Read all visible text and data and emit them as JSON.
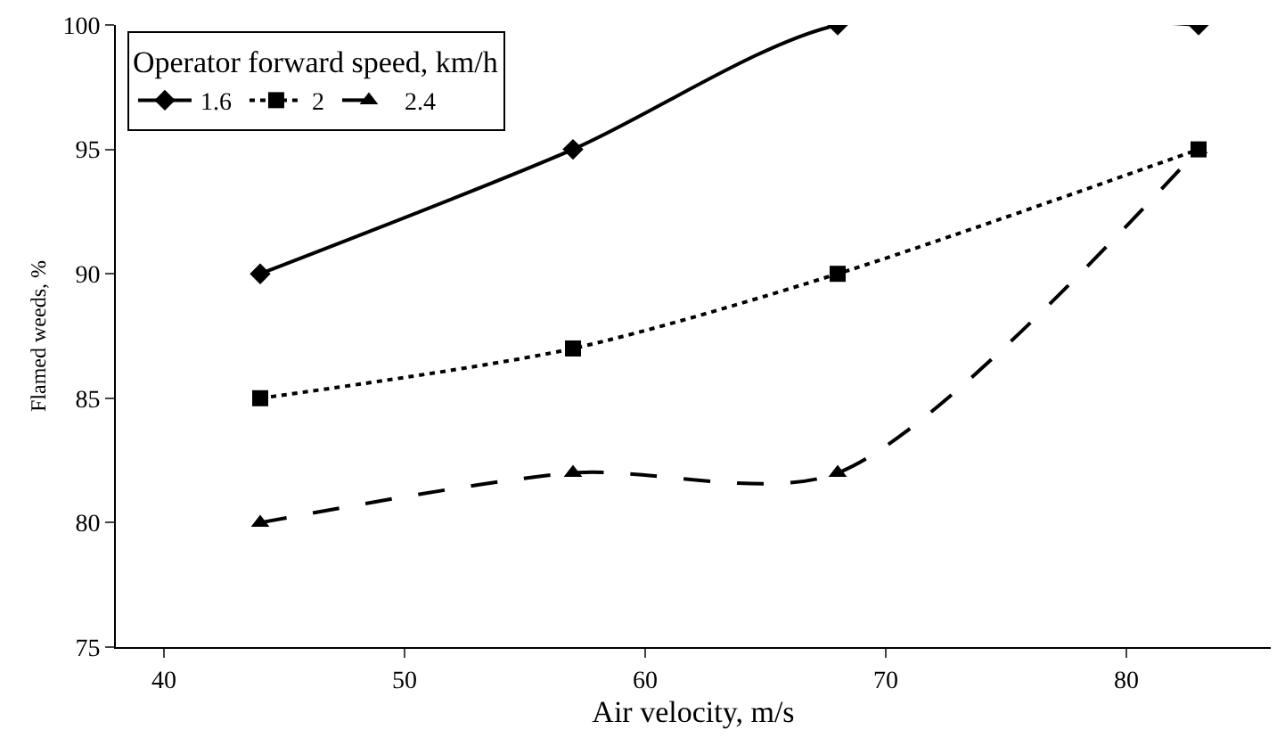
{
  "chart_data": {
    "type": "line",
    "xlabel": "Air velocity, m/s",
    "ylabel": "Flamed weeds, %",
    "legend_title": "Operator forward speed, km/h",
    "legend": "top left",
    "grid": false,
    "x": [
      44,
      57,
      68,
      83
    ],
    "xlim": [
      38,
      86
    ],
    "xticks": [
      40,
      50,
      60,
      70,
      80
    ],
    "ylim": [
      75,
      100
    ],
    "yticks": [
      75,
      80,
      85,
      90,
      95,
      100
    ],
    "series": [
      {
        "name": "1.6",
        "color": "#000000",
        "values": [
          90,
          95,
          100,
          100
        ],
        "marker": "diamond",
        "line_style": "solid"
      },
      {
        "name": "2",
        "color": "#000000",
        "values": [
          85,
          87,
          90,
          95
        ],
        "marker": "square",
        "line_style": "dotted"
      },
      {
        "name": "2.4",
        "color": "#000000",
        "values": [
          80,
          82,
          82,
          95
        ],
        "marker": "triangle",
        "line_style": "dashed"
      }
    ]
  }
}
